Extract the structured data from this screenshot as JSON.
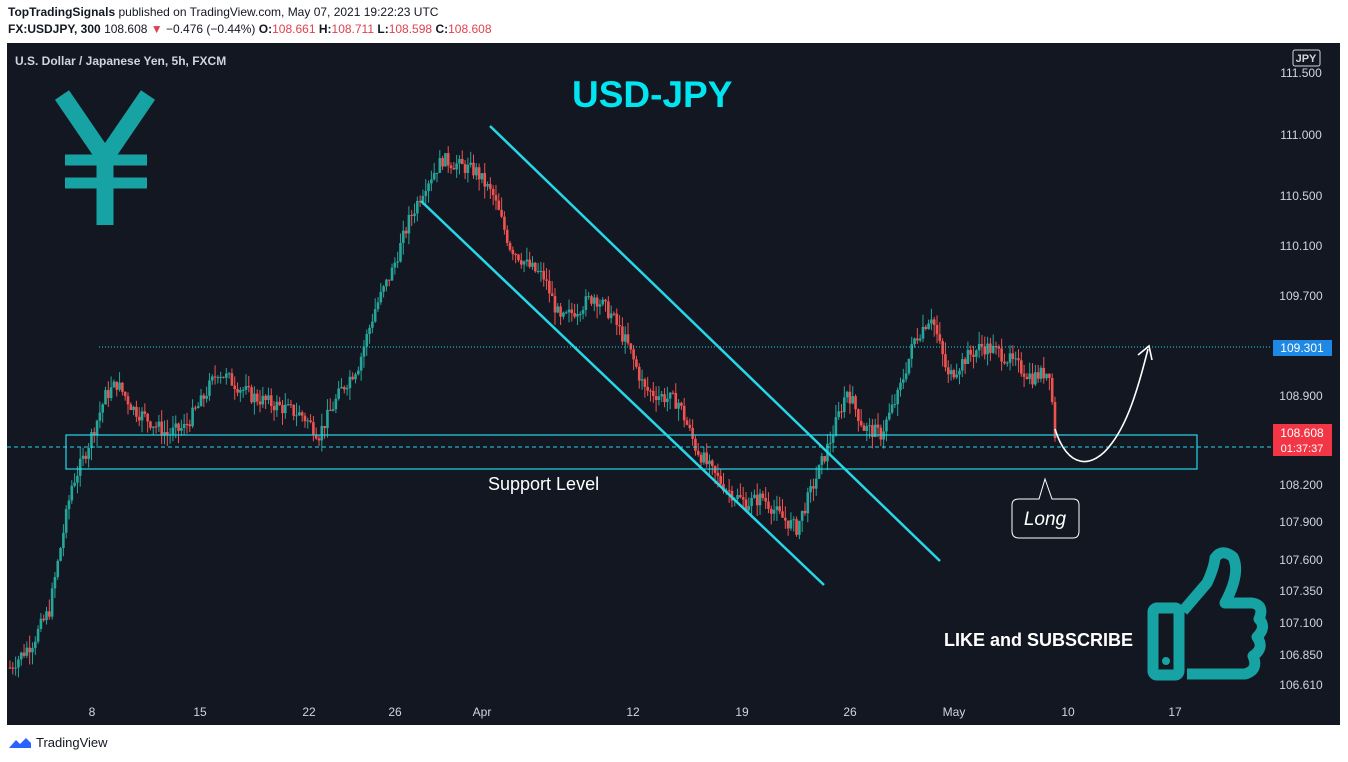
{
  "header": {
    "author": "TopTradingSignals",
    "published_text": "published on TradingView.com, May 07, 2021 19:22:23 UTC",
    "symbol": "FX:USDJPY, 300",
    "last": "108.608",
    "change_arrow": "▼",
    "change": "−0.476 (−0.44%)",
    "o_label": "O:",
    "o_value": "108.661",
    "h_label": "H:",
    "h_value": "108.711",
    "l_label": "L:",
    "l_value": "108.598",
    "c_label": "C:",
    "c_value": "108.608"
  },
  "footer": {
    "brand": "TradingView",
    "logo_icon": "tradingview-logo-icon"
  },
  "colors": {
    "background": "#131722",
    "accent": "#00e5f0",
    "channel": "#26d7e8",
    "up": "#26a69a",
    "down": "#ef5350",
    "price_label": "#f23645",
    "level_label": "#1e88e5"
  },
  "chart_data": {
    "type": "candlestick",
    "title": "USD-JPY",
    "legend_text": "U.S. Dollar / Japanese Yen, 5h, FXCM",
    "currency": "JPY",
    "x_tick_labels": [
      "8",
      "15",
      "22",
      "26",
      "Apr",
      "12",
      "19",
      "26",
      "May",
      "10",
      "17"
    ],
    "y_tick_labels": [
      "111.500",
      "111.000",
      "110.500",
      "110.100",
      "109.700",
      "108.900",
      "108.200",
      "107.900",
      "107.600",
      "107.350",
      "107.100",
      "106.850",
      "106.610"
    ],
    "ylim": [
      106.5,
      111.7
    ],
    "last_price": "108.608",
    "countdown": "01:37:37",
    "resistance_level": "109.301",
    "support_zone": [
      108.35,
      108.7
    ],
    "annotations": [
      "Support Level",
      "Long",
      "LIKE and SUBSCRIBE"
    ],
    "icons": [
      "yen-icon",
      "thumbs-up-icon"
    ],
    "path_points": [
      [
        0,
        106.75
      ],
      [
        8,
        106.95
      ],
      [
        14,
        107.2
      ],
      [
        18,
        107.7
      ],
      [
        22,
        108.2
      ],
      [
        26,
        108.4
      ],
      [
        30,
        108.65
      ],
      [
        34,
        108.9
      ],
      [
        38,
        109.0
      ],
      [
        44,
        108.8
      ],
      [
        50,
        108.7
      ],
      [
        56,
        108.6
      ],
      [
        62,
        108.65
      ],
      [
        68,
        108.85
      ],
      [
        74,
        109.1
      ],
      [
        80,
        109.0
      ],
      [
        86,
        108.9
      ],
      [
        92,
        108.85
      ],
      [
        98,
        108.8
      ],
      [
        104,
        108.75
      ],
      [
        110,
        108.6
      ],
      [
        118,
        108.95
      ],
      [
        124,
        109.15
      ],
      [
        130,
        109.6
      ],
      [
        136,
        109.9
      ],
      [
        142,
        110.3
      ],
      [
        148,
        110.6
      ],
      [
        154,
        110.8
      ],
      [
        160,
        110.75
      ],
      [
        166,
        110.7
      ],
      [
        172,
        110.5
      ],
      [
        178,
        110.1
      ],
      [
        184,
        109.95
      ],
      [
        190,
        109.85
      ],
      [
        196,
        109.5
      ],
      [
        202,
        109.6
      ],
      [
        208,
        109.7
      ],
      [
        214,
        109.55
      ],
      [
        220,
        109.3
      ],
      [
        226,
        108.95
      ],
      [
        232,
        108.9
      ],
      [
        238,
        108.85
      ],
      [
        244,
        108.5
      ],
      [
        250,
        108.3
      ],
      [
        256,
        108.15
      ],
      [
        262,
        108.05
      ],
      [
        268,
        108.1
      ],
      [
        274,
        107.95
      ],
      [
        280,
        107.85
      ],
      [
        286,
        108.2
      ],
      [
        292,
        108.55
      ],
      [
        298,
        108.95
      ],
      [
        304,
        108.65
      ],
      [
        310,
        108.6
      ],
      [
        316,
        108.9
      ],
      [
        322,
        109.35
      ],
      [
        328,
        109.55
      ],
      [
        334,
        109.05
      ],
      [
        340,
        109.2
      ],
      [
        346,
        109.3
      ],
      [
        352,
        109.25
      ],
      [
        358,
        109.15
      ],
      [
        364,
        109.05
      ],
      [
        370,
        109.1
      ],
      [
        372,
        108.6
      ]
    ]
  }
}
